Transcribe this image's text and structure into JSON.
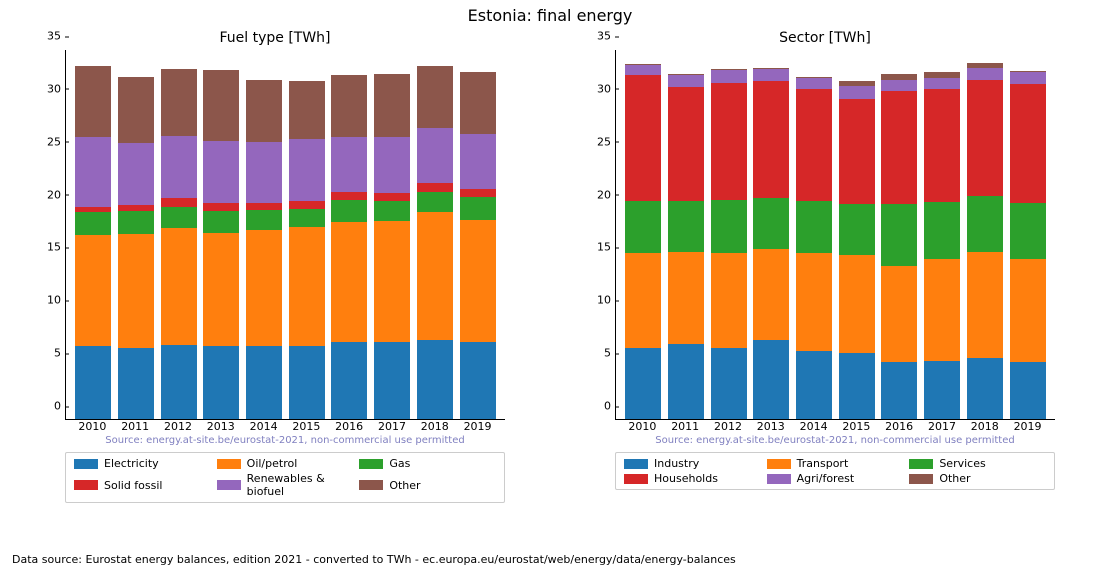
{
  "suptitle": "Estonia: final energy",
  "footer": "Data source: Eurostat energy balances, edition 2021 - converted to TWh - ec.europa.eu/eurostat/web/energy/data/energy-balances",
  "watermark": "Source: energy.at-site.be/eurostat-2021, non-commercial use permitted",
  "colors": {
    "c0": "#1f77b4",
    "c1": "#ff7f0e",
    "c2": "#2ca02c",
    "c3": "#d62728",
    "c4": "#9467bd",
    "c5": "#8c564b"
  },
  "years": [
    "2010",
    "2011",
    "2012",
    "2013",
    "2014",
    "2015",
    "2016",
    "2017",
    "2018",
    "2019"
  ],
  "yaxis": {
    "min": 0,
    "max": 35,
    "step": 5
  },
  "left": {
    "title": "Fuel type [TWh]",
    "legend": [
      "Electricity",
      "Oil/petrol",
      "Gas",
      "Solid fossil",
      "Renewables & biofuel",
      "Other"
    ],
    "series": [
      [
        6.9,
        6.7,
        7.0,
        6.9,
        6.9,
        6.9,
        7.3,
        7.3,
        7.5,
        7.3
      ],
      [
        10.5,
        10.8,
        11.1,
        10.7,
        11.0,
        11.3,
        11.3,
        11.4,
        12.1,
        11.5
      ],
      [
        2.2,
        2.2,
        2.0,
        2.1,
        1.9,
        1.7,
        2.1,
        1.9,
        1.9,
        2.2
      ],
      [
        0.5,
        0.5,
        0.8,
        0.7,
        0.6,
        0.7,
        0.8,
        0.8,
        0.8,
        0.8
      ],
      [
        6.6,
        5.9,
        5.9,
        5.9,
        5.8,
        5.9,
        5.2,
        5.3,
        5.2,
        5.2
      ],
      [
        6.7,
        6.3,
        6.3,
        6.7,
        5.9,
        5.5,
        5.8,
        5.9,
        5.9,
        5.8
      ]
    ]
  },
  "right": {
    "title": "Sector [TWh]",
    "legend": [
      "Industry",
      "Transport",
      "Services",
      "Households",
      "Agri/forest",
      "Other"
    ],
    "series": [
      [
        6.7,
        7.1,
        6.7,
        7.5,
        6.4,
        6.2,
        5.4,
        5.5,
        5.8,
        5.4
      ],
      [
        9.0,
        8.7,
        9.0,
        8.6,
        9.3,
        9.3,
        9.1,
        9.6,
        10.0,
        9.7
      ],
      [
        4.9,
        4.8,
        5.0,
        4.8,
        4.9,
        4.8,
        5.8,
        5.4,
        5.3,
        5.3
      ],
      [
        11.9,
        10.8,
        11.1,
        11.1,
        10.6,
        10.0,
        10.7,
        10.7,
        11.0,
        11.3
      ],
      [
        1.0,
        1.1,
        1.2,
        1.1,
        1.1,
        1.2,
        1.1,
        1.1,
        1.1,
        1.1
      ],
      [
        0.1,
        0.1,
        0.1,
        0.1,
        0.1,
        0.5,
        0.5,
        0.5,
        0.5,
        0.1
      ]
    ]
  }
}
